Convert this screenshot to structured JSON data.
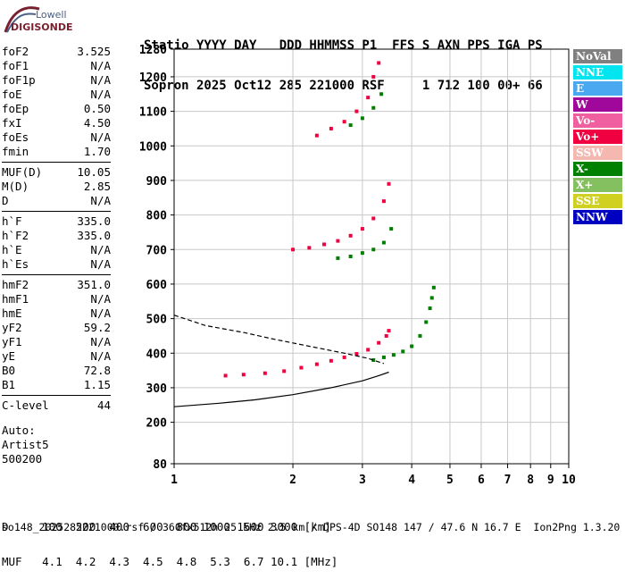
{
  "logo": {
    "line1": "Lowell",
    "line2": "DIGISONDE"
  },
  "header": {
    "line1": "Statio YYYY DAY   DDD HHMMSS P1  FFS S AXN PPS IGA PS",
    "line2": "Sopron 2025 Oct12 285 221000 RSF     1 712 100 00+ 66"
  },
  "params": {
    "group1": [
      {
        "label": "foF2",
        "value": "3.525"
      },
      {
        "label": "foF1",
        "value": "N/A"
      },
      {
        "label": "foF1p",
        "value": "N/A"
      },
      {
        "label": "foE",
        "value": "N/A"
      },
      {
        "label": "foEp",
        "value": "0.50"
      },
      {
        "label": "fxI",
        "value": "4.50"
      },
      {
        "label": "foEs",
        "value": "N/A"
      },
      {
        "label": "fmin",
        "value": "1.70"
      }
    ],
    "group2": [
      {
        "label": "MUF(D)",
        "value": "10.05"
      },
      {
        "label": "M(D)",
        "value": "2.85"
      },
      {
        "label": "D",
        "value": "N/A"
      }
    ],
    "group3": [
      {
        "label": "h`F",
        "value": "335.0"
      },
      {
        "label": "h`F2",
        "value": "335.0"
      },
      {
        "label": "h`E",
        "value": "N/A"
      },
      {
        "label": "h`Es",
        "value": "N/A"
      }
    ],
    "group4": [
      {
        "label": "hmF2",
        "value": "351.0"
      },
      {
        "label": "hmF1",
        "value": "N/A"
      },
      {
        "label": "hmE",
        "value": "N/A"
      },
      {
        "label": "yF2",
        "value": "59.2"
      },
      {
        "label": "yF1",
        "value": "N/A"
      },
      {
        "label": "yE",
        "value": "N/A"
      },
      {
        "label": "B0",
        "value": "72.8"
      },
      {
        "label": "B1",
        "value": "1.15"
      }
    ],
    "group5": [
      {
        "label": "C-level",
        "value": "44"
      }
    ]
  },
  "auto": {
    "line1": "Auto:",
    "line2": "Artist5",
    "line3": "500200"
  },
  "bottom_table": {
    "line1": "D     100  200  400  600  800 1000 1500 3000 [km]",
    "line2": "MUF   4.1  4.2  4.3  4.5  4.8  5.3  6.7 10.1 [MHz]"
  },
  "footer": "so148_2025285221000.rsf / 360fx512h 25 kHz 2.5 km / DPS-4D SO148 147 / 47.6 N 16.7 E  Ion2Png 1.3.20",
  "legend": [
    {
      "label": "NoVal",
      "color": "#808080"
    },
    {
      "label": "NNE",
      "color": "#00e5f0"
    },
    {
      "label": "E",
      "color": "#4aa8f0"
    },
    {
      "label": "W",
      "color": "#a0089c"
    },
    {
      "label": "Vo-",
      "color": "#f060a0"
    },
    {
      "label": "Vo+",
      "color": "#f00040"
    },
    {
      "label": "SSW",
      "color": "#f4b8b0"
    },
    {
      "label": "X-",
      "color": "#008000"
    },
    {
      "label": "X+",
      "color": "#84c060"
    },
    {
      "label": "SSE",
      "color": "#d0d020"
    },
    {
      "label": "NNW",
      "color": "#0000c0"
    }
  ],
  "chart_data": {
    "type": "scatter",
    "x_ticks": [
      "1",
      "2",
      "3",
      "4",
      "5",
      "6",
      "7",
      "8",
      "9",
      "10"
    ],
    "y_ticks": [
      "80",
      "200",
      "300",
      "400",
      "500",
      "600",
      "700",
      "800",
      "900",
      "1000",
      "1100",
      "1200",
      "1280"
    ],
    "xlim": [
      1,
      10
    ],
    "ylim": [
      80,
      1280
    ],
    "x_scale": "log",
    "grid": true,
    "series": [
      {
        "name": "Vo+",
        "color": "#f00040",
        "x": [
          1.35,
          1.5,
          1.7,
          1.9,
          2.1,
          2.3,
          2.5,
          2.7,
          2.9,
          3.1,
          3.3,
          3.45,
          3.5
        ],
        "y": [
          335,
          338,
          342,
          348,
          358,
          368,
          378,
          388,
          398,
          410,
          430,
          450,
          465
        ]
      },
      {
        "name": "X-",
        "color": "#008000",
        "x": [
          3.2,
          3.4,
          3.6,
          3.8,
          4.0,
          4.2,
          4.35,
          4.45,
          4.5,
          4.55
        ],
        "y": [
          380,
          388,
          395,
          405,
          420,
          450,
          490,
          530,
          560,
          590
        ]
      },
      {
        "name": "Vo+",
        "color": "#f00040",
        "x": [
          2.0,
          2.2,
          2.4,
          2.6,
          2.8,
          3.0,
          3.2,
          3.4,
          3.5
        ],
        "y": [
          700,
          705,
          715,
          725,
          740,
          760,
          790,
          840,
          890
        ]
      },
      {
        "name": "X-",
        "color": "#008000",
        "x": [
          2.6,
          2.8,
          3.0,
          3.2,
          3.4,
          3.55
        ],
        "y": [
          675,
          680,
          690,
          700,
          720,
          760
        ]
      },
      {
        "name": "Vo+",
        "color": "#f00040",
        "x": [
          2.3,
          2.5,
          2.7,
          2.9,
          3.1,
          3.2,
          3.3
        ],
        "y": [
          1030,
          1050,
          1070,
          1100,
          1140,
          1200,
          1240
        ]
      },
      {
        "name": "X-",
        "color": "#008000",
        "x": [
          2.8,
          3.0,
          3.2,
          3.35
        ],
        "y": [
          1060,
          1080,
          1110,
          1150
        ]
      }
    ],
    "profile": [
      {
        "x": [
          1.0,
          1.3,
          1.6,
          2.0,
          2.5,
          3.0,
          3.3,
          3.5
        ],
        "y": [
          245,
          255,
          265,
          280,
          300,
          320,
          335,
          345
        ],
        "style": "solid"
      },
      {
        "x": [
          1.0,
          1.2,
          1.5,
          1.8,
          2.2,
          2.7,
          3.1,
          3.4
        ],
        "y": [
          510,
          480,
          460,
          440,
          420,
          400,
          385,
          370
        ],
        "style": "dashed"
      }
    ]
  }
}
